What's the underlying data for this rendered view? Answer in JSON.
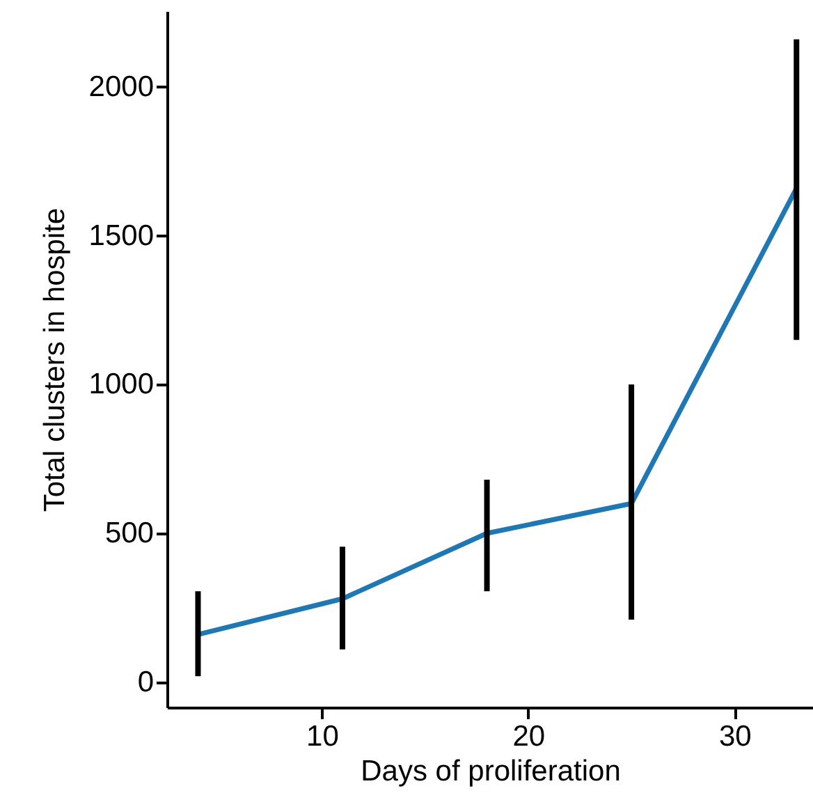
{
  "chart_data": {
    "type": "line",
    "xlabel": "Days of proliferation",
    "ylabel": "Total clusters in hospite",
    "x": [
      4,
      11,
      18,
      25,
      33
    ],
    "series": [
      {
        "color": "#1f77b4",
        "values": [
          160,
          280,
          500,
          600,
          1660
        ],
        "errors": [
          [
            20,
            305
          ],
          [
            110,
            455
          ],
          [
            305,
            680
          ],
          [
            210,
            1000
          ],
          [
            1150,
            2160
          ]
        ]
      }
    ],
    "xlim": [
      2.5,
      33.8
    ],
    "xticks": [
      10,
      20,
      30
    ],
    "ylim": [
      -85,
      2255
    ],
    "yticks": [
      0,
      500,
      1000,
      1500,
      2000
    ],
    "grid": false,
    "marker": "none",
    "line_style": "solid"
  }
}
